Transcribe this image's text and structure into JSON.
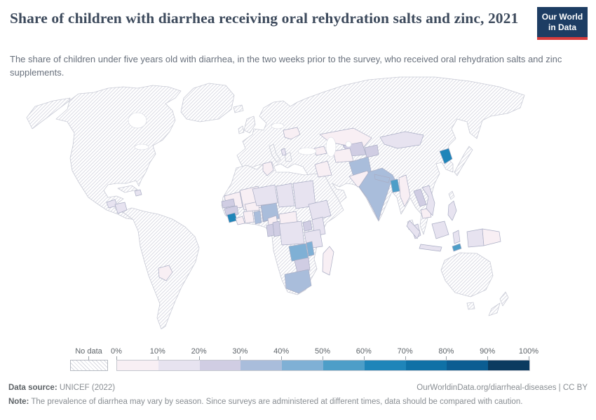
{
  "header": {
    "title": "Share of children with diarrhea receiving oral rehydration salts and zinc, 2021",
    "subtitle": "The share of children under five years old with diarrhea, in the two weeks prior to the survey, who received oral rehydration salts and zinc supplements.",
    "logo": {
      "line1": "Our World",
      "line2": "in Data",
      "bg_color": "#1d3d63",
      "accent_color": "#d73c3c"
    }
  },
  "legend": {
    "no_data_label": "No data",
    "ticks": [
      "0%",
      "10%",
      "20%",
      "30%",
      "40%",
      "50%",
      "60%",
      "70%",
      "80%",
      "90%",
      "100%"
    ],
    "buckets": [
      "0-10",
      "10-20",
      "20-30",
      "30-40",
      "40-50",
      "50-60",
      "60-70",
      "70-80",
      "80-90",
      "90-100"
    ],
    "bucket_colors": {
      "0-10": "#f8eff4",
      "10-20": "#e7e3f0",
      "20-30": "#d0cde3",
      "30-40": "#a9bddb",
      "40-50": "#7fb0d5",
      "50-60": "#4d9ec8",
      "60-70": "#1f85b9",
      "70-80": "#0f71a6",
      "80-90": "#0c5d92",
      "90-100": "#0b3b60"
    },
    "no_data_style": "diagonal-hatch"
  },
  "footer": {
    "source_label": "Data source:",
    "source_text": "UNICEF (2022)",
    "link_text": "OurWorldinData.org/diarrheal-diseases | CC BY",
    "note_label": "Note:",
    "note_text": "The prevalence of diarrhea may vary by season. Since surveys are administered at different times, data should be compared with caution."
  },
  "chart_data": {
    "type": "choropleth_map",
    "title": "Share of children with diarrhea receiving oral rehydration salts and zinc, 2021",
    "unit": "% of children under five with diarrhea receiving ORS and zinc",
    "year": "2021",
    "legend_ticks": [
      "0%",
      "10%",
      "20%",
      "30%",
      "40%",
      "50%",
      "60%",
      "70%",
      "80%",
      "90%",
      "100%"
    ],
    "no_data_regions": "Most of the Americas, Europe, Russia, China, Middle East, Australia shown hatched (no data)",
    "countries": [
      {
        "id": "guatemala",
        "name": "Guatemala",
        "range": "10-20"
      },
      {
        "id": "honduras",
        "name": "Honduras",
        "range": "10-20"
      },
      {
        "id": "haiti",
        "name": "Haiti",
        "range": "10-20"
      },
      {
        "id": "paraguay",
        "name": "Paraguay",
        "range": "0-10"
      },
      {
        "id": "belarus",
        "name": "Belarus",
        "range": "0-10"
      },
      {
        "id": "albania",
        "name": "Albania",
        "range": "10-20"
      },
      {
        "id": "tunisia",
        "name": "Tunisia",
        "range": "0-10"
      },
      {
        "id": "georgia",
        "name": "Georgia",
        "range": "0-10"
      },
      {
        "id": "iraq",
        "name": "Iraq",
        "range": "0-10"
      },
      {
        "id": "kazakhstan",
        "name": "Kazakhstan",
        "range": "0-10"
      },
      {
        "id": "uzbekistan",
        "name": "Uzbekistan",
        "range": "20-30"
      },
      {
        "id": "turkmenistan",
        "name": "Turkmenistan",
        "range": "0-10"
      },
      {
        "id": "tajikistan",
        "name": "Tajikistan",
        "range": "20-30"
      },
      {
        "id": "afghanistan",
        "name": "Afghanistan",
        "range": "30-40"
      },
      {
        "id": "pakistan",
        "name": "Pakistan",
        "range": "0-10"
      },
      {
        "id": "india",
        "name": "India",
        "range": "30-40"
      },
      {
        "id": "nepal",
        "name": "Nepal",
        "range": "30-40"
      },
      {
        "id": "bangladesh",
        "name": "Bangladesh",
        "range": "50-60"
      },
      {
        "id": "myanmar",
        "name": "Myanmar",
        "range": "0-10"
      },
      {
        "id": "laos",
        "name": "Laos",
        "range": "20-30"
      },
      {
        "id": "cambodia",
        "name": "Cambodia",
        "range": "0-10"
      },
      {
        "id": "vietnam",
        "name": "Vietnam",
        "range": "10-20"
      },
      {
        "id": "mongolia",
        "name": "Mongolia",
        "range": "10-20"
      },
      {
        "id": "north-korea",
        "name": "North Korea",
        "range": "60-70"
      },
      {
        "id": "philippines",
        "name": "Philippines",
        "range": "10-20"
      },
      {
        "id": "malaysia",
        "name": "Malaysia",
        "range": "10-20"
      },
      {
        "id": "indonesia",
        "name": "Indonesia",
        "range": "10-20"
      },
      {
        "id": "timor-leste",
        "name": "Timor-Leste",
        "range": "50-60"
      },
      {
        "id": "papua-new-guinea",
        "name": "Papua New Guinea",
        "range": "0-10"
      },
      {
        "id": "mauritania",
        "name": "Mauritania",
        "range": "0-10"
      },
      {
        "id": "mali",
        "name": "Mali",
        "range": "0-10"
      },
      {
        "id": "senegal",
        "name": "Senegal",
        "range": "20-30"
      },
      {
        "id": "guinea",
        "name": "Guinea",
        "range": "20-30"
      },
      {
        "id": "sierra-leone",
        "name": "Sierra Leone",
        "range": "60-70"
      },
      {
        "id": "liberia",
        "name": "Liberia",
        "range": "0-10"
      },
      {
        "id": "cote-divoire",
        "name": "Côte d'Ivoire",
        "range": "0-10"
      },
      {
        "id": "ghana",
        "name": "Ghana",
        "range": "30-40"
      },
      {
        "id": "benin",
        "name": "Benin",
        "range": "30-40"
      },
      {
        "id": "burkina-faso",
        "name": "Burkina Faso",
        "range": "0-10"
      },
      {
        "id": "niger",
        "name": "Niger",
        "range": "10-20"
      },
      {
        "id": "nigeria",
        "name": "Nigeria",
        "range": "30-40"
      },
      {
        "id": "chad",
        "name": "Chad",
        "range": "10-20"
      },
      {
        "id": "cameroon",
        "name": "Cameroon",
        "range": "0-10"
      },
      {
        "id": "central-african-republic",
        "name": "Central African Republic",
        "range": "0-10"
      },
      {
        "id": "sudan",
        "name": "Sudan",
        "range": "10-20"
      },
      {
        "id": "ethiopia",
        "name": "Ethiopia",
        "range": "10-20"
      },
      {
        "id": "uganda",
        "name": "Uganda",
        "range": "20-30"
      },
      {
        "id": "kenya",
        "name": "Kenya",
        "range": "10-20"
      },
      {
        "id": "dr-congo",
        "name": "Democratic Republic of Congo",
        "range": "10-20"
      },
      {
        "id": "congo",
        "name": "Congo",
        "range": "20-30"
      },
      {
        "id": "gabon",
        "name": "Gabon",
        "range": "20-30"
      },
      {
        "id": "tanzania",
        "name": "Tanzania",
        "range": "10-20"
      },
      {
        "id": "zambia",
        "name": "Zambia",
        "range": "40-50"
      },
      {
        "id": "malawi",
        "name": "Malawi",
        "range": "40-50"
      },
      {
        "id": "zimbabwe",
        "name": "Zimbabwe",
        "range": "20-30"
      },
      {
        "id": "south-africa",
        "name": "South Africa",
        "range": "30-40"
      },
      {
        "id": "madagascar",
        "name": "Madagascar",
        "range": "0-10"
      }
    ]
  }
}
